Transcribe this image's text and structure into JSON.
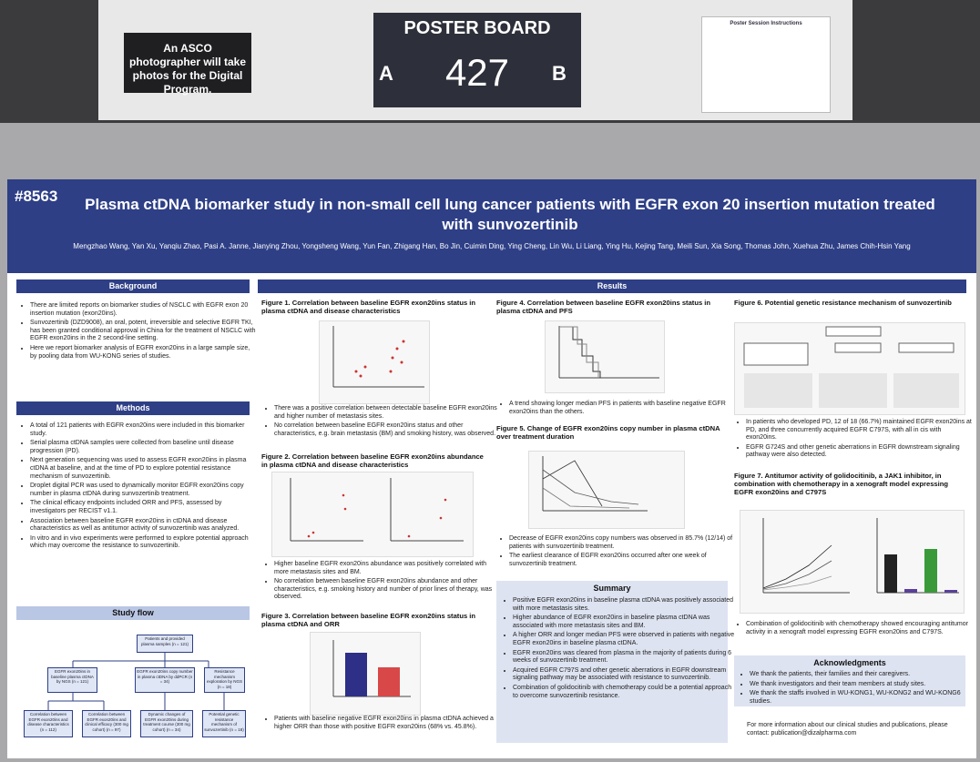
{
  "sign": {
    "photographer": "An ASCO photographer will take photos for the Digital Program.",
    "poster_board": "POSTER BOARD",
    "side_a": "A",
    "number": "427",
    "side_b": "B",
    "instructions_title": "Poster Session Instructions"
  },
  "poster": {
    "id": "#8563",
    "title": "Plasma ctDNA biomarker study in non-small cell lung cancer patients with EGFR exon 20 insertion mutation treated with sunvozertinib",
    "authors": "Mengzhao Wang, Yan Xu, Yanqiu Zhao, Pasi A. Janne, Jianying Zhou, Yongsheng Wang, Yun Fan, Zhigang Han, Bo Jin, Cuimin Ding, Ying Cheng, Lin Wu, Li Liang, Ying Hu, Kejing Tang, Meili Sun, Xia Song, Thomas John, Xuehua Zhu, James Chih-Hsin Yang"
  },
  "background": {
    "heading": "Background",
    "bullets": [
      "There are limited reports on biomarker studies of NSCLC with EGFR exon 20 insertion mutation (exon20ins).",
      "Sunvozertinib (DZD9008), an oral, potent, irreversible and selective EGFR TKI, has been granted conditional approval in China for the treatment of NSCLC with EGFR exon20ins in the 2 second-line setting.",
      "Here we report biomarker analysis of EGFR exon20ins in a large sample size, by pooling data from WU-KONG series of studies."
    ]
  },
  "methods": {
    "heading": "Methods",
    "bullets": [
      "A total of 121 patients with EGFR exon20ins were included in this biomarker study.",
      "Serial plasma ctDNA samples were collected from baseline until disease progression (PD).",
      "Next generation sequencing was used to assess EGFR exon20ins in plasma ctDNA at baseline, and at the time of PD to explore potential resistance mechanism of sunvozertinib.",
      "Droplet digital PCR was used to dynamically monitor EGFR exon20ins copy number in plasma ctDNA during sunvozertinib treatment.",
      "The clinical efficacy endpoints included ORR and PFS, assessed by investigators per RECIST v1.1.",
      "Association between baseline EGFR exon20ins in ctDNA and disease characteristics as well as antitumor activity of sunvozertinib was analyzed.",
      "In vitro and in vivo experiments were performed to explore potential approach which may overcome the resistance to sunvozertinib."
    ]
  },
  "study_flow": {
    "heading": "Study flow",
    "nodes": [
      "Patients and provided plasma samples (n = 121)",
      "EGFR exon20ins in baseline plasma ctDNA by NGS (n = 121)",
      "EGFR exon20ins copy number in plasma ctDNA by ddPCR (n = 34)",
      "Resistance mechanism exploration by NGS (n = 18)",
      "Correlation between EGFR exon20ins and disease characteristics (n = 112)",
      "Correlation between EGFR exon20ins and clinical efficacy (300 mg cohort) (n = 97)",
      "Dynamic changes of EGFR exon20ins during treatment course (300 mg cohort) (n = 34)",
      "Potential genetic resistance mechanism of sunvozertinib (n = 18)"
    ]
  },
  "results": {
    "heading": "Results"
  },
  "figure1": {
    "title": "Figure 1. Correlation between baseline EGFR exon20ins status in plasma ctDNA and disease characteristics",
    "bullets": [
      "There was a positive correlation between detectable baseline EGFR exon20ins and higher number of metastasis sites.",
      "No correlation between baseline EGFR exon20ins status and other characteristics, e.g. brain metastasis (BM) and smoking history, was observed."
    ]
  },
  "figure2": {
    "title": "Figure 2. Correlation between baseline EGFR exon20ins abundance in plasma ctDNA and disease characteristics",
    "bullets": [
      "Higher baseline EGFR exon20ins abundance was positively correlated with more metastasis sites and BM.",
      "No correlation between baseline EGFR exon20ins abundance and other characteristics, e.g. smoking history and number of prior lines of therapy, was observed."
    ]
  },
  "figure3": {
    "title": "Figure 3. Correlation between baseline EGFR exon20ins status in plasma ctDNA and ORR",
    "bullets": [
      "Patients with baseline negative EGFR exon20ins in plasma ctDNA achieved a higher ORR than those with positive EGFR exon20ins (68% vs. 45.8%)."
    ]
  },
  "figure4": {
    "title": "Figure 4. Correlation between baseline EGFR exon20ins status in plasma ctDNA and PFS",
    "bullets": [
      "A trend showing longer median PFS in patients with baseline negative EGFR exon20ins than the others."
    ]
  },
  "figure5": {
    "title": "Figure 5. Change of EGFR exon20ins copy number in plasma ctDNA over treatment duration",
    "bullets": [
      "Decrease of EGFR exon20ins copy numbers was observed in 85.7% (12/14) of patients with sunvozertinib treatment.",
      "The earliest clearance of EGFR exon20ins occurred after one week of sunvozertinib treatment."
    ]
  },
  "summary": {
    "heading": "Summary",
    "bullets": [
      "Positive EGFR exon20ins in baseline plasma ctDNA was positively associated with more metastasis sites.",
      "Higher abundance of EGFR exon20ins in baseline plasma ctDNA was associated with more metastasis sites and BM.",
      "A higher ORR and longer median PFS were observed in patients with negative EGFR exon20ins in baseline plasma ctDNA.",
      "EGFR exon20ins was cleared from plasma in the majority of patients during 6 weeks of sunvozertinib treatment.",
      "Acquired EGFR C797S and other genetic aberrations in EGFR downstream signaling pathway may be associated with resistance to sunvozertinib.",
      "Combination of golidocitinib with chemotherapy could be a potential approach to overcome sunvozertinib resistance."
    ]
  },
  "figure6": {
    "title": "Figure 6. Potential genetic resistance mechanism of sunvozertinib",
    "bullets": [
      "In patients who developed PD, 12 of 18 (66.7%) maintained EGFR exon20ins at PD, and three concurrently acquired EGFR C797S, with all in cis with exon20ins.",
      "EGFR G724S and other genetic aberrations in EGFR downstream signaling pathway were also detected."
    ]
  },
  "figure7": {
    "title": "Figure 7. Antitumor activity of golidocitinib, a JAK1 inhibitor, in combination with chemotherapy in a xenograft model expressing EGFR exon20ins and C797S",
    "bullets": [
      "Combination of golidocitinib with chemotherapy showed encouraging antitumor activity in a xenograft model expressing EGFR exon20ins and C797S."
    ]
  },
  "acknowledgments": {
    "heading": "Acknowledgments",
    "bullets": [
      "We thank the patients, their families and their caregivers.",
      "We thank investigators and their team members at study sites.",
      "We thank the staffs involved in WU-KONG1, WU-KONG2 and WU-KONG6 studies."
    ]
  },
  "contact": "For more information about our clinical studies and publications, please contact: publication@dizalpharma.com"
}
